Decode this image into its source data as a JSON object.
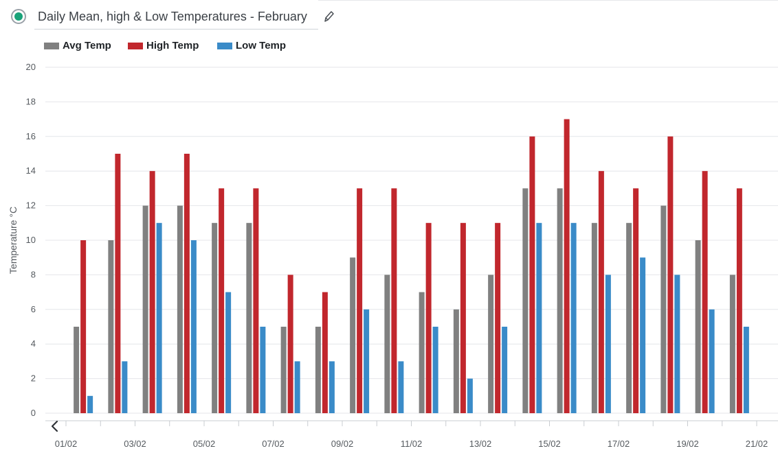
{
  "header": {
    "title": "Daily Mean, high & Low Temperatures - February"
  },
  "legend": [
    {
      "label": "Avg Temp",
      "color": "#808080"
    },
    {
      "label": "High Temp",
      "color": "#c1272d"
    },
    {
      "label": "Low Temp",
      "color": "#3a8bc8"
    }
  ],
  "chart_data": {
    "type": "bar",
    "title": "Daily Mean, high & Low Temperatures - February",
    "xlabel": "",
    "ylabel": "Temperature °C",
    "ylim": [
      0,
      20
    ],
    "yticks": [
      0,
      2,
      4,
      6,
      8,
      10,
      12,
      14,
      16,
      18,
      20
    ],
    "grid": true,
    "legend_position": "top-left",
    "categories": [
      "01/02",
      "02/02",
      "03/02",
      "04/02",
      "05/02",
      "06/02",
      "07/02",
      "08/02",
      "09/02",
      "10/02",
      "11/02",
      "12/02",
      "13/02",
      "14/02",
      "15/02",
      "16/02",
      "17/02",
      "18/02",
      "19/02",
      "20/02",
      "21/02"
    ],
    "xtick_labels": [
      "01/02",
      "03/02",
      "05/02",
      "07/02",
      "09/02",
      "11/02",
      "13/02",
      "15/02",
      "17/02",
      "19/02",
      "21/02"
    ],
    "series": [
      {
        "name": "Avg Temp",
        "color": "#808080",
        "values": [
          5,
          10,
          12,
          12,
          11,
          11,
          5,
          5,
          9,
          8,
          7,
          6,
          8,
          13,
          13,
          11,
          11,
          12,
          10,
          8,
          null
        ]
      },
      {
        "name": "High Temp",
        "color": "#c1272d",
        "values": [
          10,
          15,
          14,
          15,
          13,
          13,
          8,
          7,
          13,
          13,
          11,
          11,
          11,
          16,
          17,
          14,
          13,
          16,
          14,
          13,
          null
        ]
      },
      {
        "name": "Low Temp",
        "color": "#3a8bc8",
        "values": [
          1,
          3,
          11,
          10,
          7,
          5,
          3,
          3,
          6,
          3,
          5,
          2,
          5,
          11,
          11,
          8,
          9,
          8,
          6,
          5,
          null
        ]
      }
    ]
  },
  "navigation": {
    "scroll_left_icon": "chevron-left-icon"
  }
}
